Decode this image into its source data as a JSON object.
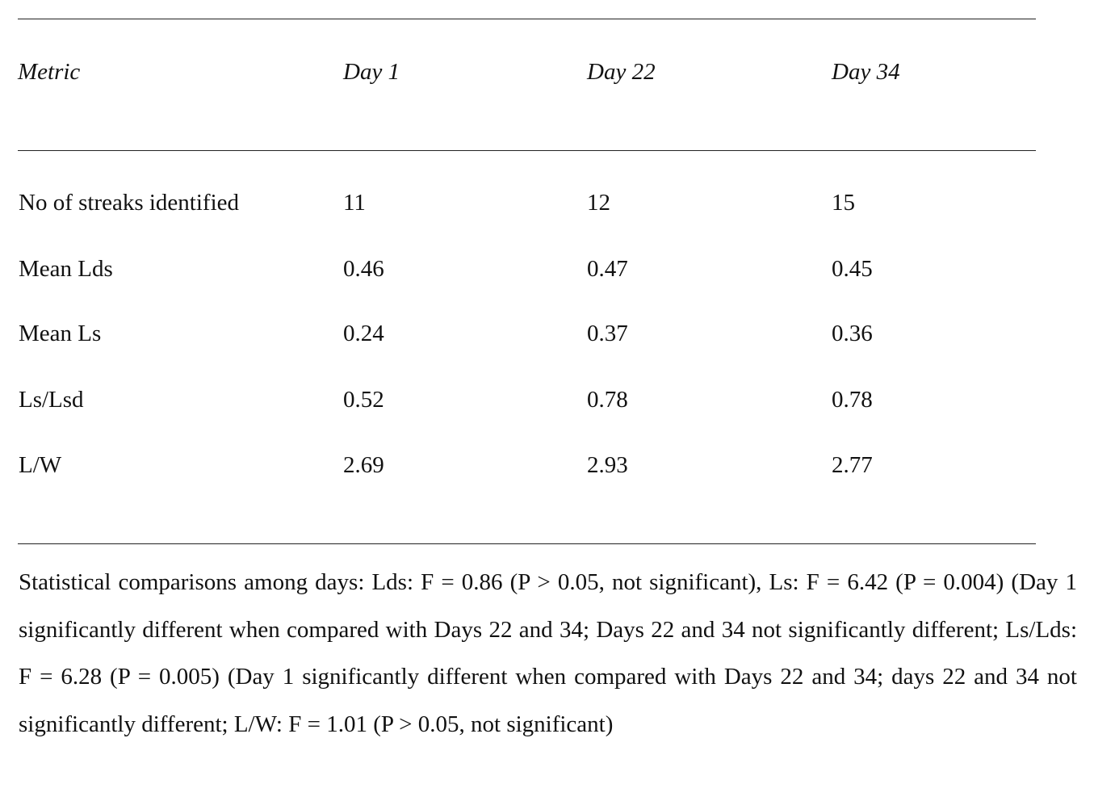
{
  "table": {
    "header": [
      "Metric",
      "Day 1",
      "Day 22",
      "Day 34"
    ],
    "rows": [
      [
        "No of streaks identified",
        "11",
        "12",
        "15"
      ],
      [
        "Mean Lds",
        "0.46",
        "0.47",
        "0.45"
      ],
      [
        "Mean Ls",
        "0.24",
        "0.37",
        "0.36"
      ],
      [
        "Ls/Lsd",
        "0.52",
        "0.78",
        "0.78"
      ],
      [
        "L/W",
        "2.69",
        "2.93",
        "2.77"
      ]
    ]
  },
  "footnote": "Statistical comparisons among days: Lds: F = 0.86 (P > 0.05, not significant), Ls: F = 6.42 (P = 0.004) (Day 1 significantly different when compared with Days 22 and 34; Days 22 and 34 not significantly different; Ls/Lds: F = 6.28 (P = 0.005) (Day 1 significantly different when compared with Days 22 and 34; days 22 and 34 not significantly different; L/W: F = 1.01 (P > 0.05, not significant)"
}
